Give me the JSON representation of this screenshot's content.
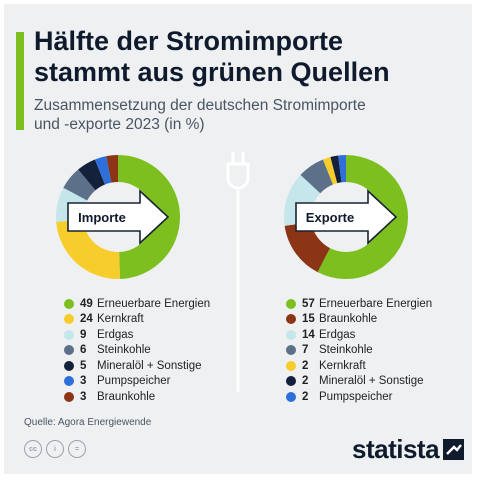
{
  "header": {
    "title_line1": "Hälfte der Stromimporte",
    "title_line2": "stammt aus grünen Quellen",
    "subtitle_line1": "Zusammensetzung der deutschen Stromimporte",
    "subtitle_line2": "und -exporte 2023 (in %)"
  },
  "chart_data": [
    {
      "type": "pie",
      "label": "Importe",
      "categories": [
        "Erneuerbare Energien",
        "Kernkraft",
        "Erdgas",
        "Steinkohle",
        "Mineralöl + Sonstige",
        "Pumpspeicher",
        "Braunkohle"
      ],
      "values": [
        49,
        24,
        9,
        6,
        5,
        3,
        3
      ],
      "colors": [
        "#7cbf1f",
        "#f6cd2a",
        "#c5e6ea",
        "#5c7189",
        "#14213a",
        "#2f6fdb",
        "#8b3516"
      ]
    },
    {
      "type": "pie",
      "label": "Exporte",
      "categories": [
        "Erneuerbare Energien",
        "Braunkohle",
        "Erdgas",
        "Steinkohle",
        "Kernkraft",
        "Mineralöl + Sonstige",
        "Pumpspeicher"
      ],
      "values": [
        57,
        15,
        14,
        7,
        2,
        2,
        2
      ],
      "colors": [
        "#7cbf1f",
        "#8b3516",
        "#c5e6ea",
        "#5c7189",
        "#f6cd2a",
        "#14213a",
        "#2f6fdb"
      ]
    }
  ],
  "footer": {
    "source": "Quelle: Agora Energiewende",
    "brand": "statista",
    "cc_icons": [
      "cc-icon",
      "person-icon",
      "equals-icon"
    ],
    "cc_labels": [
      "cc",
      "i",
      "="
    ]
  },
  "colors": {
    "accent": "#7cbf1f",
    "title": "#0f1b2d",
    "background": "#eef0f2",
    "arrow": "#ffffff"
  }
}
